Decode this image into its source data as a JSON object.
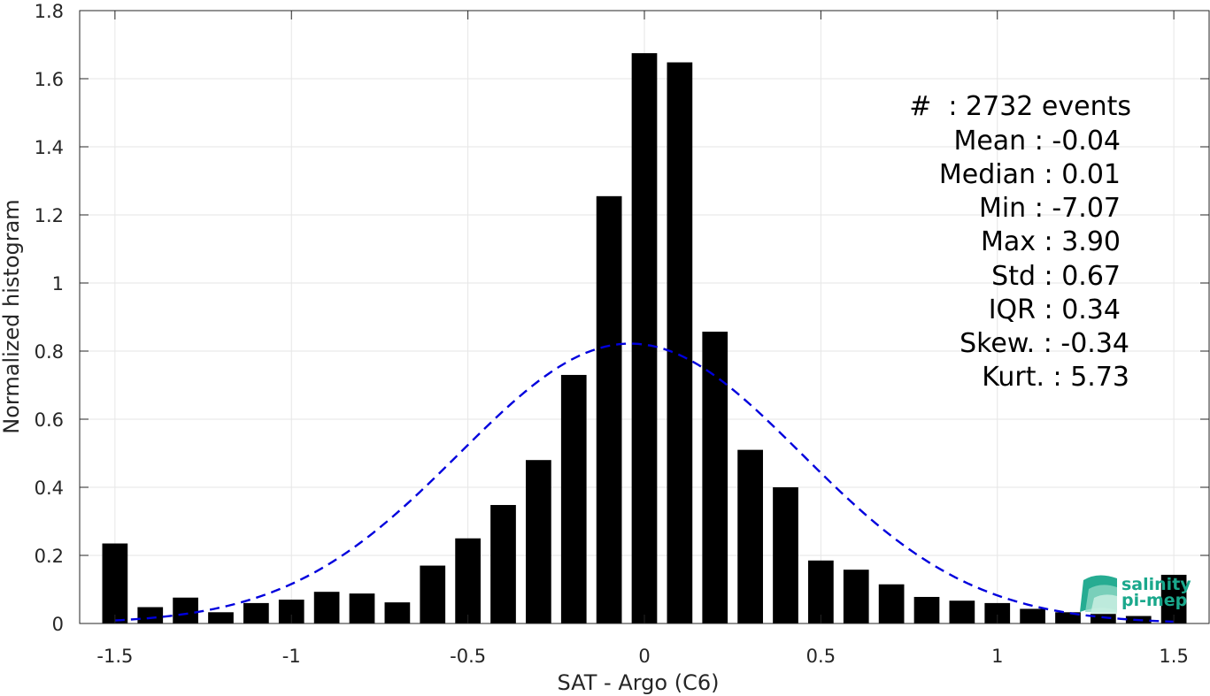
{
  "chart_data": {
    "type": "bar",
    "xlabel": "SAT - Argo (C6)",
    "ylabel": "Normalized histogram",
    "xlim": [
      -1.6,
      1.6
    ],
    "ylim": [
      0,
      1.8
    ],
    "x_ticks": [
      "-1.5",
      "-1",
      "-0.5",
      "0",
      "0.5",
      "1",
      "1.5"
    ],
    "x_tick_values": [
      -1.5,
      -1,
      -0.5,
      0,
      0.5,
      1,
      1.5
    ],
    "y_ticks": [
      "0",
      "0.2",
      "0.4",
      "0.6",
      "0.8",
      "1",
      "1.2",
      "1.4",
      "1.6",
      "1.8"
    ],
    "y_tick_values": [
      0,
      0.2,
      0.4,
      0.6,
      0.8,
      1.0,
      1.2,
      1.4,
      1.6,
      1.8
    ],
    "grid": true,
    "bin_width": 0.1,
    "bar_color": "#000000",
    "bars": [
      {
        "x": -1.5,
        "value": 0.235
      },
      {
        "x": -1.4,
        "value": 0.048
      },
      {
        "x": -1.3,
        "value": 0.076
      },
      {
        "x": -1.2,
        "value": 0.033
      },
      {
        "x": -1.1,
        "value": 0.06
      },
      {
        "x": -1.0,
        "value": 0.07
      },
      {
        "x": -0.9,
        "value": 0.093
      },
      {
        "x": -0.8,
        "value": 0.088
      },
      {
        "x": -0.7,
        "value": 0.062
      },
      {
        "x": -0.6,
        "value": 0.17
      },
      {
        "x": -0.5,
        "value": 0.25
      },
      {
        "x": -0.4,
        "value": 0.348
      },
      {
        "x": -0.3,
        "value": 0.48
      },
      {
        "x": -0.2,
        "value": 0.73
      },
      {
        "x": -0.1,
        "value": 1.255
      },
      {
        "x": 0.0,
        "value": 1.675
      },
      {
        "x": 0.1,
        "value": 1.648
      },
      {
        "x": 0.2,
        "value": 0.857
      },
      {
        "x": 0.3,
        "value": 0.51
      },
      {
        "x": 0.4,
        "value": 0.4
      },
      {
        "x": 0.5,
        "value": 0.185
      },
      {
        "x": 0.6,
        "value": 0.158
      },
      {
        "x": 0.7,
        "value": 0.115
      },
      {
        "x": 0.8,
        "value": 0.078
      },
      {
        "x": 0.9,
        "value": 0.067
      },
      {
        "x": 1.0,
        "value": 0.06
      },
      {
        "x": 1.1,
        "value": 0.043
      },
      {
        "x": 1.2,
        "value": 0.033
      },
      {
        "x": 1.3,
        "value": 0.028
      },
      {
        "x": 1.4,
        "value": 0.022
      },
      {
        "x": 1.5,
        "value": 0.143
      }
    ],
    "fit_curve": {
      "style": "dashed",
      "color": "#0000dd",
      "mean": -0.04,
      "std": 0.485,
      "peak": 0.822,
      "x_range": [
        -1.5,
        1.5
      ]
    },
    "stats": {
      "events": "#  : 2732 events",
      "mean": "Mean : -0.04",
      "median": "Median : 0.01",
      "min": "Min : -7.07",
      "max": "Max : 3.90",
      "std": "Std : 0.67",
      "iqr": "IQR : 0.34",
      "skew": "Skew. : -0.34",
      "kurt": "Kurt. : 5.73"
    }
  },
  "logo": {
    "line1": "salinity",
    "line2": "pi-mep",
    "color": "#1aa88c"
  }
}
